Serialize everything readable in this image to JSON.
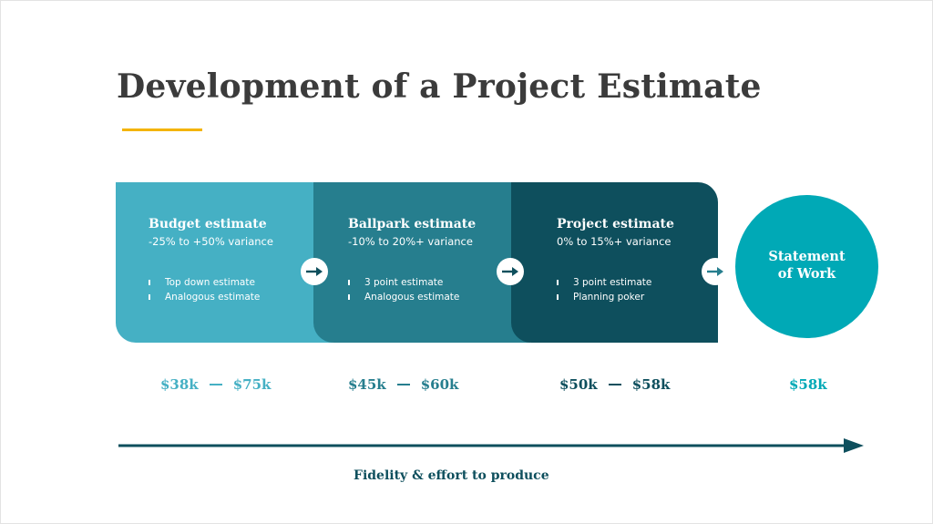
{
  "title": "Development of a Project Estimate",
  "colors": {
    "title": "#3b3b3b",
    "underline": "#f4b400",
    "budget": "#45b0c4",
    "ballpark": "#267e8e",
    "project": "#0e4f5d",
    "statement": "#00a9b6"
  },
  "stages": [
    {
      "title": "Budget estimate",
      "variance": "-25% to +50% variance",
      "items": [
        "Top down estimate",
        "Analogous estimate"
      ],
      "range_low": "$38k",
      "range_high": "$75k"
    },
    {
      "title": "Ballpark estimate",
      "variance": "-10% to 20%+ variance",
      "items": [
        "3 point estimate",
        "Analogous estimate"
      ],
      "range_low": "$45k",
      "range_high": "$60k"
    },
    {
      "title": "Project estimate",
      "variance": "0% to 15%+ variance",
      "items": [
        "3 point estimate",
        "Planning poker"
      ],
      "range_low": "$50k",
      "range_high": "$58k"
    }
  ],
  "statement": {
    "line1": "Statement",
    "line2": "of Work",
    "value": "$58k"
  },
  "axis_label": "Fidelity & effort to produce",
  "icons": {
    "stage_arrow": "arrow-right-icon",
    "axis_arrow": "long-arrow-right-icon"
  }
}
